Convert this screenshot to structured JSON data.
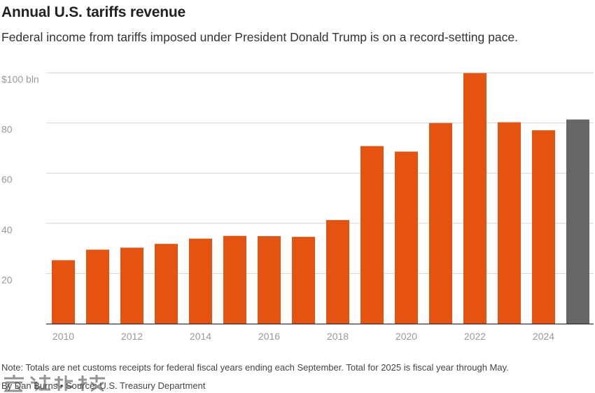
{
  "title": "Annual U.S. tariffs revenue",
  "subtitle": "Federal income from tariffs imposed under President Donald Trump is on a record-setting pace.",
  "note": "Note: Totals are net customs receipts for federal fiscal years ending each September. Total for 2025 is fiscal year through May.",
  "credit": "By Dan Burns • Source: U.S. Treasury Department",
  "watermark_icon": "watermark-logo",
  "colors": {
    "bar": "#e4530f",
    "highlight_bar": "#666666",
    "grid": "#d3d3d3",
    "axis": "#333333",
    "tick_text": "#999999"
  },
  "chart_data": {
    "type": "bar",
    "x": [
      2010,
      2011,
      2012,
      2013,
      2014,
      2015,
      2016,
      2017,
      2018,
      2019,
      2020,
      2021,
      2022,
      2023,
      2024,
      2025
    ],
    "values": [
      25.3,
      29.5,
      30.3,
      31.8,
      33.9,
      35.0,
      34.9,
      34.6,
      41.3,
      70.8,
      68.6,
      80.0,
      99.9,
      80.3,
      77.1,
      81.4
    ],
    "highlight_x": 2025,
    "xticks": [
      2010,
      2012,
      2014,
      2016,
      2018,
      2020,
      2022,
      2024
    ],
    "yticks": [
      {
        "value": 20,
        "label": "20"
      },
      {
        "value": 40,
        "label": "40"
      },
      {
        "value": 60,
        "label": "60"
      },
      {
        "value": 80,
        "label": "80"
      },
      {
        "value": 100,
        "label": "$100 bln"
      }
    ],
    "ylim": [
      0,
      100
    ],
    "grid": true,
    "legend": "none"
  }
}
